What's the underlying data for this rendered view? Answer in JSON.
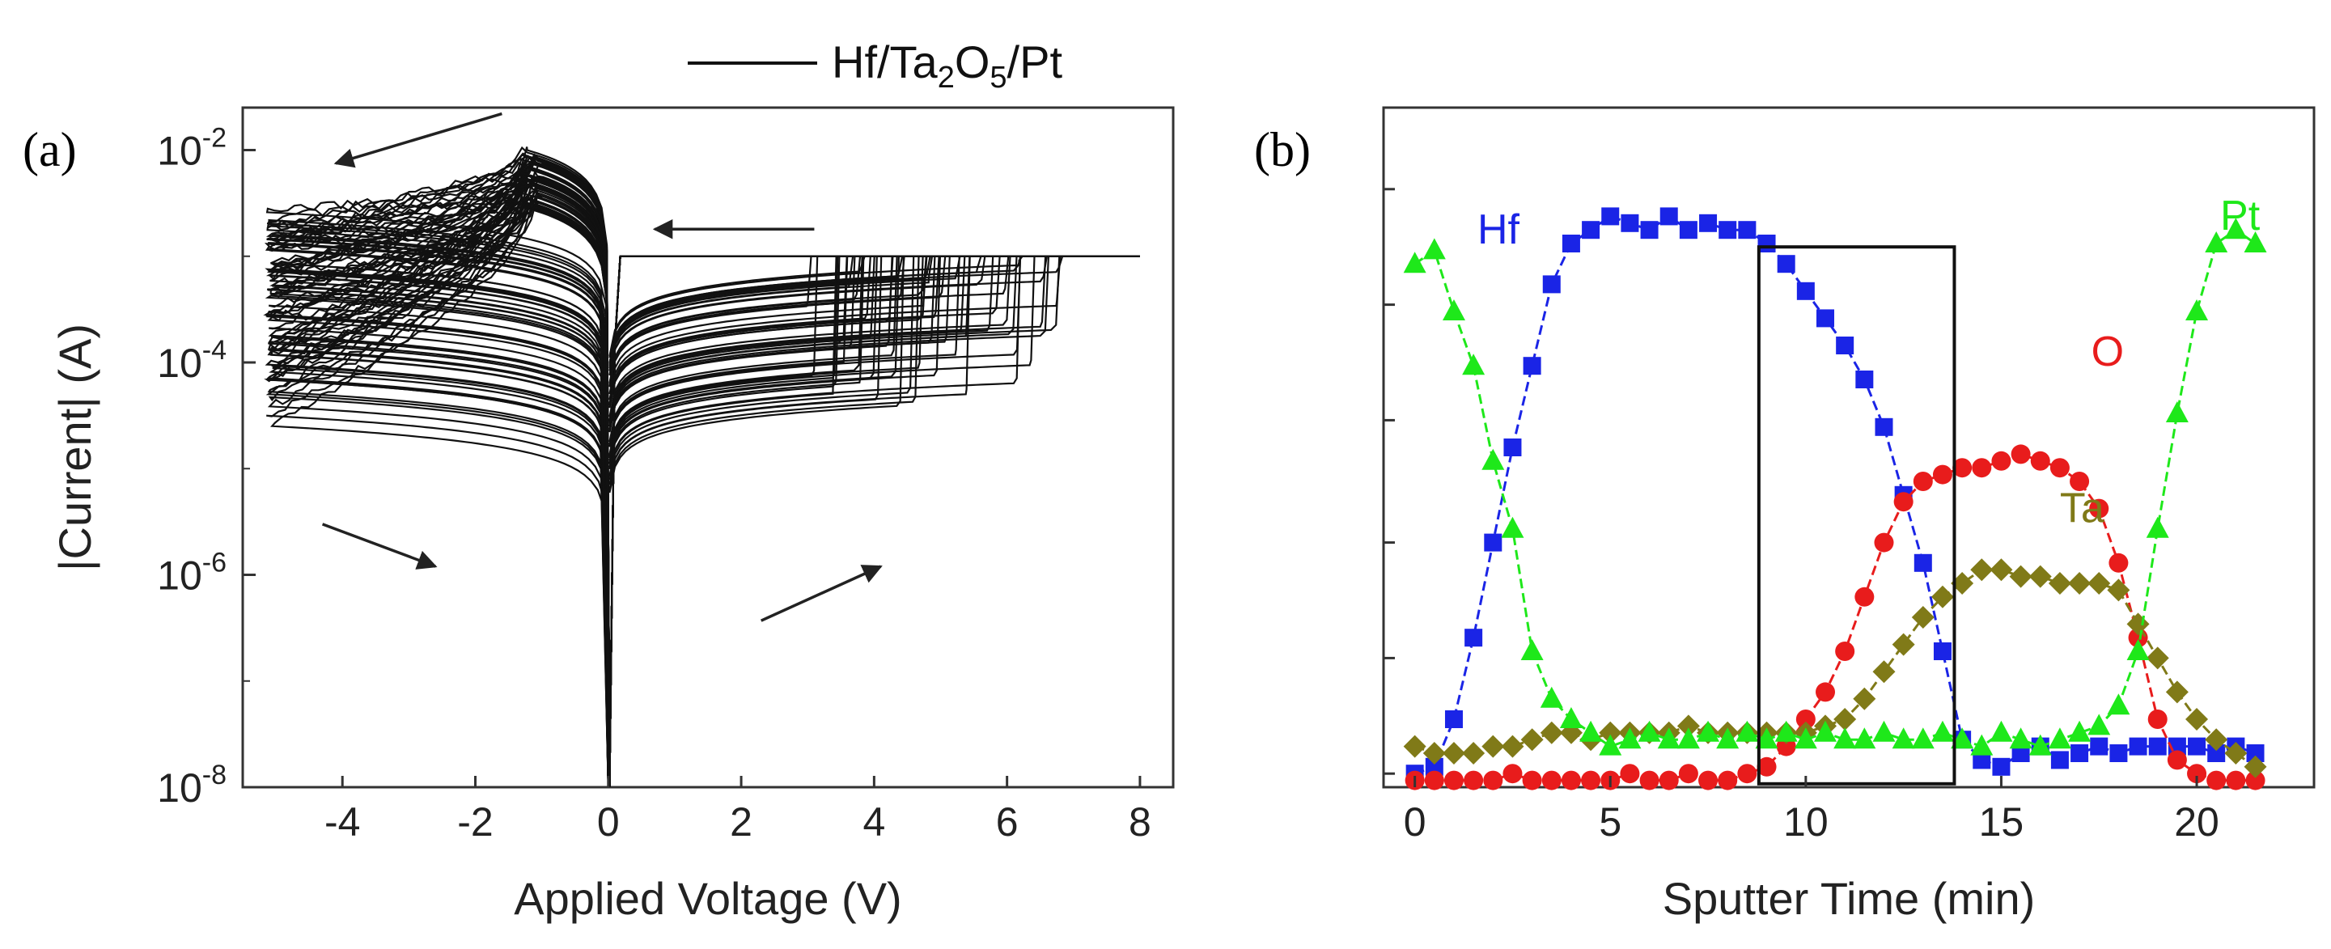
{
  "chart_data": [
    {
      "type": "line",
      "panel_label": "(a)",
      "title": "",
      "legend": {
        "entry": "Hf/Ta",
        "sub1": "2",
        "mid": "O",
        "sub2": "5",
        "tail": "/Pt",
        "full": "Hf/Ta2O5/Pt",
        "color": "#111111",
        "placement": "top-right"
      },
      "xlabel": "Applied Voltage (V)",
      "ylabel": "|Current| (A)",
      "xlim": [
        -5.5,
        8.5
      ],
      "ylim_exp": [
        -8,
        -1.6
      ],
      "xticks": [
        -4,
        -2,
        0,
        2,
        4,
        6,
        8
      ],
      "xtick_labels": [
        "-4",
        "-2",
        "0",
        "2",
        "4",
        "6",
        "8"
      ],
      "ytick_exps": [
        -8,
        -6,
        -4,
        -2
      ],
      "ytick_base": "10",
      "ytick_exp_labels": [
        "-8",
        "-6",
        "-4",
        "-2"
      ],
      "compliance_current": 0.001,
      "compliance_end_v": 8,
      "reset_peak_v": -1.2,
      "reset_peak_current": 0.01,
      "num_cycles": 60,
      "min_current": 1e-08,
      "arrows": [
        {
          "name": "reset-sweep-arrow",
          "from": [
            -1.6,
            0.022
          ],
          "to": [
            -4.1,
            0.0075
          ]
        },
        {
          "name": "compliance-arrow",
          "from": [
            3.1,
            0.0018
          ],
          "to": [
            0.7,
            0.0018
          ]
        },
        {
          "name": "neg-return-arrow",
          "from": [
            -4.3,
            3e-06
          ],
          "to": [
            -2.6,
            1.2e-06
          ]
        },
        {
          "name": "pos-sweep-arrow",
          "from": [
            2.3,
            3.7e-07
          ],
          "to": [
            4.1,
            1.2e-06
          ]
        }
      ],
      "line_color": "#111111"
    },
    {
      "type": "scatter",
      "panel_label": "(b)",
      "title": "",
      "xlabel": "Sputter Time (min)",
      "ylabel": "",
      "xlim": [
        -0.8,
        23
      ],
      "ylim": [
        0,
        1
      ],
      "xticks": [
        0,
        5,
        10,
        15,
        20
      ],
      "xtick_labels": [
        "0",
        "5",
        "10",
        "15",
        "20"
      ],
      "ytick_values": [
        0.02,
        0.19,
        0.36,
        0.54,
        0.71,
        0.88
      ],
      "highlight_box": {
        "x0": 8.8,
        "x1": 13.8,
        "y0": 0.005,
        "y1": 0.795
      },
      "series": [
        {
          "name": "Hf",
          "label_text": "Hf",
          "color": "#1a24e6",
          "marker": "square",
          "label_x": 1.6,
          "label_y": 0.8,
          "x": [
            0,
            0.5,
            1,
            1.5,
            2,
            2.5,
            3,
            3.5,
            4,
            4.5,
            5,
            5.5,
            6,
            6.5,
            7,
            7.5,
            8,
            8.5,
            9,
            9.5,
            10,
            10.5,
            11,
            11.5,
            12,
            12.5,
            13,
            13.5,
            14,
            14.5,
            15,
            15.5,
            16,
            16.5,
            17,
            17.5,
            18,
            18.5,
            19,
            19.5,
            20,
            20.5,
            21,
            21.5
          ],
          "y": [
            0.02,
            0.03,
            0.1,
            0.22,
            0.36,
            0.5,
            0.62,
            0.74,
            0.8,
            0.82,
            0.84,
            0.83,
            0.82,
            0.84,
            0.82,
            0.83,
            0.82,
            0.82,
            0.8,
            0.77,
            0.73,
            0.69,
            0.65,
            0.6,
            0.53,
            0.43,
            0.33,
            0.2,
            0.07,
            0.04,
            0.03,
            0.05,
            0.06,
            0.04,
            0.05,
            0.06,
            0.05,
            0.06,
            0.06,
            0.06,
            0.06,
            0.05,
            0.06,
            0.05
          ]
        },
        {
          "name": "O",
          "label_text": "O",
          "color": "#e81c1c",
          "marker": "circle",
          "label_x": 17.3,
          "label_y": 0.62,
          "x": [
            0,
            0.5,
            1,
            1.5,
            2,
            2.5,
            3,
            3.5,
            4,
            4.5,
            5,
            5.5,
            6,
            6.5,
            7,
            7.5,
            8,
            8.5,
            9,
            9.5,
            10,
            10.5,
            11,
            11.5,
            12,
            12.5,
            13,
            13.5,
            14,
            14.5,
            15,
            15.5,
            16,
            16.5,
            17,
            17.5,
            18,
            18.5,
            19,
            19.5,
            20,
            20.5,
            21,
            21.5
          ],
          "y": [
            0.01,
            0.01,
            0.01,
            0.01,
            0.01,
            0.02,
            0.01,
            0.01,
            0.01,
            0.01,
            0.01,
            0.02,
            0.01,
            0.01,
            0.02,
            0.01,
            0.01,
            0.02,
            0.03,
            0.06,
            0.1,
            0.14,
            0.2,
            0.28,
            0.36,
            0.42,
            0.45,
            0.46,
            0.47,
            0.47,
            0.48,
            0.49,
            0.48,
            0.47,
            0.45,
            0.41,
            0.33,
            0.22,
            0.1,
            0.04,
            0.02,
            0.01,
            0.01,
            0.01
          ]
        },
        {
          "name": "Ta",
          "label_text": "Ta",
          "color": "#807a18",
          "marker": "diamond",
          "label_x": 16.5,
          "label_y": 0.39,
          "x": [
            0,
            0.5,
            1,
            1.5,
            2,
            2.5,
            3,
            3.5,
            4,
            4.5,
            5,
            5.5,
            6,
            6.5,
            7,
            7.5,
            8,
            8.5,
            9,
            9.5,
            10,
            10.5,
            11,
            11.5,
            12,
            12.5,
            13,
            13.5,
            14,
            14.5,
            15,
            15.5,
            16,
            16.5,
            17,
            17.5,
            18,
            18.5,
            19,
            19.5,
            20,
            20.5,
            21,
            21.5
          ],
          "y": [
            0.06,
            0.05,
            0.05,
            0.05,
            0.06,
            0.06,
            0.07,
            0.08,
            0.08,
            0.07,
            0.08,
            0.08,
            0.08,
            0.08,
            0.09,
            0.08,
            0.08,
            0.08,
            0.08,
            0.08,
            0.08,
            0.09,
            0.1,
            0.13,
            0.17,
            0.21,
            0.25,
            0.28,
            0.3,
            0.32,
            0.32,
            0.31,
            0.31,
            0.3,
            0.3,
            0.3,
            0.29,
            0.24,
            0.19,
            0.14,
            0.1,
            0.07,
            0.05,
            0.03
          ]
        },
        {
          "name": "Pt",
          "label_text": "Pt",
          "color": "#1ee81a",
          "marker": "triangle",
          "label_x": 20.6,
          "label_y": 0.82,
          "x": [
            0,
            0.5,
            1,
            1.5,
            2,
            2.5,
            3,
            3.5,
            4,
            4.5,
            5,
            5.5,
            6,
            6.5,
            7,
            7.5,
            8,
            8.5,
            9,
            9.5,
            10,
            10.5,
            11,
            11.5,
            12,
            12.5,
            13,
            13.5,
            14,
            14.5,
            15,
            15.5,
            16,
            16.5,
            17,
            17.5,
            18,
            18.5,
            19,
            19.5,
            20,
            20.5,
            21,
            21.5
          ],
          "y": [
            0.77,
            0.79,
            0.7,
            0.62,
            0.48,
            0.38,
            0.2,
            0.13,
            0.1,
            0.08,
            0.06,
            0.07,
            0.08,
            0.07,
            0.07,
            0.08,
            0.07,
            0.08,
            0.07,
            0.08,
            0.07,
            0.08,
            0.07,
            0.07,
            0.08,
            0.07,
            0.07,
            0.08,
            0.07,
            0.06,
            0.08,
            0.07,
            0.06,
            0.07,
            0.08,
            0.09,
            0.12,
            0.2,
            0.38,
            0.55,
            0.7,
            0.8,
            0.82,
            0.8
          ]
        }
      ]
    }
  ]
}
